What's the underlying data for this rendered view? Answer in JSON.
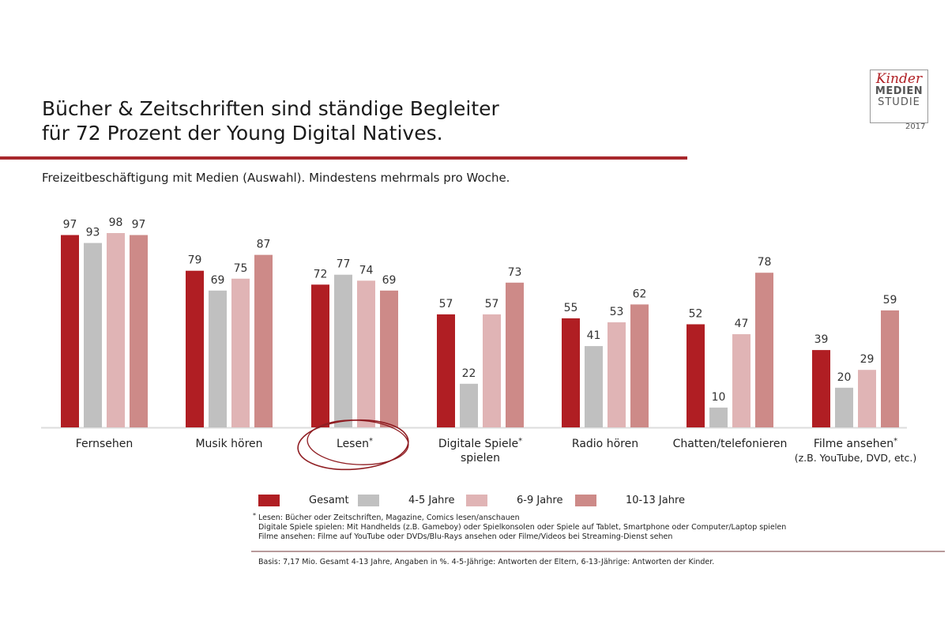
{
  "header": {
    "title_line1": "Bücher & Zeitschriften sind ständige Begleiter",
    "title_line2": "für 72 Prozent der Young Digital Natives.",
    "subtitle": "Freizeitbeschäftigung mit Medien (Auswahl). Mindestens mehrmals pro Woche."
  },
  "logo": {
    "line1": "Kinder",
    "line2": "MEDIEN",
    "line3": "STUDIE",
    "year": "2017"
  },
  "colors": {
    "accent": "#a8282c",
    "gesamt": "#b01e23",
    "age_4_5": "#c0c0c0",
    "age_6_9": "#e0b4b5",
    "age_10_13": "#cd8a88",
    "highlight_circle": "#8f1d22"
  },
  "chart_data": {
    "type": "bar",
    "title": "Freizeitbeschäftigung mit Medien (Auswahl). Mindestens mehrmals pro Woche.",
    "xlabel": "",
    "ylabel": "",
    "ylim": [
      0,
      100
    ],
    "grid": false,
    "legend_position": "bottom",
    "categories": [
      {
        "label": "Fernsehen",
        "star": "",
        "line2": "",
        "sub": ""
      },
      {
        "label": "Musik hören",
        "star": "",
        "line2": "",
        "sub": ""
      },
      {
        "label": "Lesen",
        "star": "*",
        "line2": "",
        "sub": ""
      },
      {
        "label": "Digitale Spiele",
        "star": "*",
        "line2": "spielen",
        "sub": ""
      },
      {
        "label": "Radio hören",
        "star": "",
        "line2": "",
        "sub": ""
      },
      {
        "label": "Chatten/telefonieren",
        "star": "",
        "line2": "",
        "sub": ""
      },
      {
        "label": "Filme ansehen",
        "star": "*",
        "line2": "",
        "sub": "(z.B. YouTube, DVD, etc.)"
      }
    ],
    "series": [
      {
        "name": "Gesamt",
        "values": [
          97,
          79,
          72,
          57,
          55,
          52,
          39
        ]
      },
      {
        "name": "4-5 Jahre",
        "values": [
          93,
          69,
          77,
          22,
          41,
          10,
          20
        ]
      },
      {
        "name": "6-9 Jahre",
        "values": [
          98,
          75,
          74,
          57,
          53,
          47,
          29
        ]
      },
      {
        "name": "10-13 Jahre",
        "values": [
          97,
          87,
          69,
          73,
          62,
          78,
          59
        ]
      }
    ],
    "highlighted_category": "Lesen"
  },
  "footnotes": {
    "star": "*",
    "lines": [
      "Lesen: Bücher oder Zeitschriften, Magazine, Comics lesen/anschauen",
      "Digitale Spiele spielen: Mit Handhelds (z.B. Gameboy) oder Spielkonsolen oder Spiele auf Tablet, Smartphone oder Computer/Laptop spielen",
      "Filme ansehen: Filme auf YouTube oder DVDs/Blu-Rays ansehen oder Filme/Videos bei Streaming-Dienst sehen"
    ],
    "basis": "Basis: 7,17 Mio. Gesamt 4-13 Jahre, Angaben in %. 4-5-Jährige: Antworten der Eltern, 6-13-Jährige: Antworten der Kinder."
  }
}
